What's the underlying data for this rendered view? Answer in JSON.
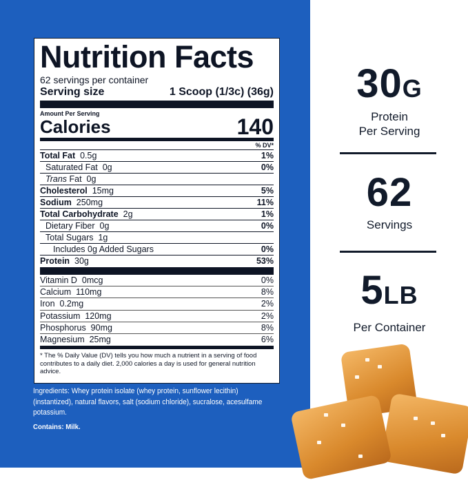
{
  "label": {
    "title": "Nutrition Facts",
    "servings": "62 servings per container",
    "serving_size_label": "Serving size",
    "serving_size_value": "1 Scoop (1/3c) (36g)",
    "amount_per_serving": "Amount Per Serving",
    "calories_label": "Calories",
    "calories_value": "140",
    "dv_header": "% DV*",
    "nutrients": [
      {
        "name": "Total Fat",
        "amount": "0.5g",
        "dv": "1%"
      },
      {
        "name": "Saturated Fat",
        "amount": "0g",
        "dv": "0%"
      },
      {
        "name": "Trans",
        "name2": "Fat",
        "amount": "0g",
        "dv": ""
      },
      {
        "name": "Cholesterol",
        "amount": "15mg",
        "dv": "5%"
      },
      {
        "name": "Sodium",
        "amount": "250mg",
        "dv": "11%"
      },
      {
        "name": "Total Carbohydrate",
        "amount": "2g",
        "dv": "1%"
      },
      {
        "name": "Dietary Fiber",
        "amount": "0g",
        "dv": "0%"
      },
      {
        "name": "Total Sugars",
        "amount": "1g",
        "dv": ""
      },
      {
        "name": "Includes 0g Added Sugars",
        "amount": "",
        "dv": "0%"
      },
      {
        "name": "Protein",
        "amount": "30g",
        "dv": "53%"
      }
    ],
    "vitamins": [
      {
        "name": "Vitamin D",
        "amount": "0mcg",
        "dv": "0%"
      },
      {
        "name": "Calcium",
        "amount": "110mg",
        "dv": "8%"
      },
      {
        "name": "Iron",
        "amount": "0.2mg",
        "dv": "2%"
      },
      {
        "name": "Potassium",
        "amount": "120mg",
        "dv": "2%"
      },
      {
        "name": "Phosphorus",
        "amount": "90mg",
        "dv": "8%"
      },
      {
        "name": "Magnesium",
        "amount": "25mg",
        "dv": "6%"
      }
    ],
    "footnote": "* The % Daily Value (DV) tells you how much a nutrient in a serving of food contributes to a daily diet. 2,000 calories a day is used for general nutrition advice."
  },
  "ingredients": "Ingredients: Whey protein isolate (whey protein, sunflower lecithin) (instantized), natural flavors, salt (sodium chloride), sucralose, acesulfame potassium.",
  "contains": "Contains: Milk.",
  "stats": [
    {
      "value": "30",
      "unit": "G",
      "line1": "Protein",
      "line2": "Per Serving"
    },
    {
      "value": "62",
      "unit": "",
      "line1": "Servings",
      "line2": ""
    },
    {
      "value": "5",
      "unit": "LB",
      "line1": "Per Container",
      "line2": ""
    }
  ],
  "colors": {
    "panel_blue": "#1d5fbe",
    "text_navy": "#111a2a",
    "caramel": "#d9892c"
  }
}
